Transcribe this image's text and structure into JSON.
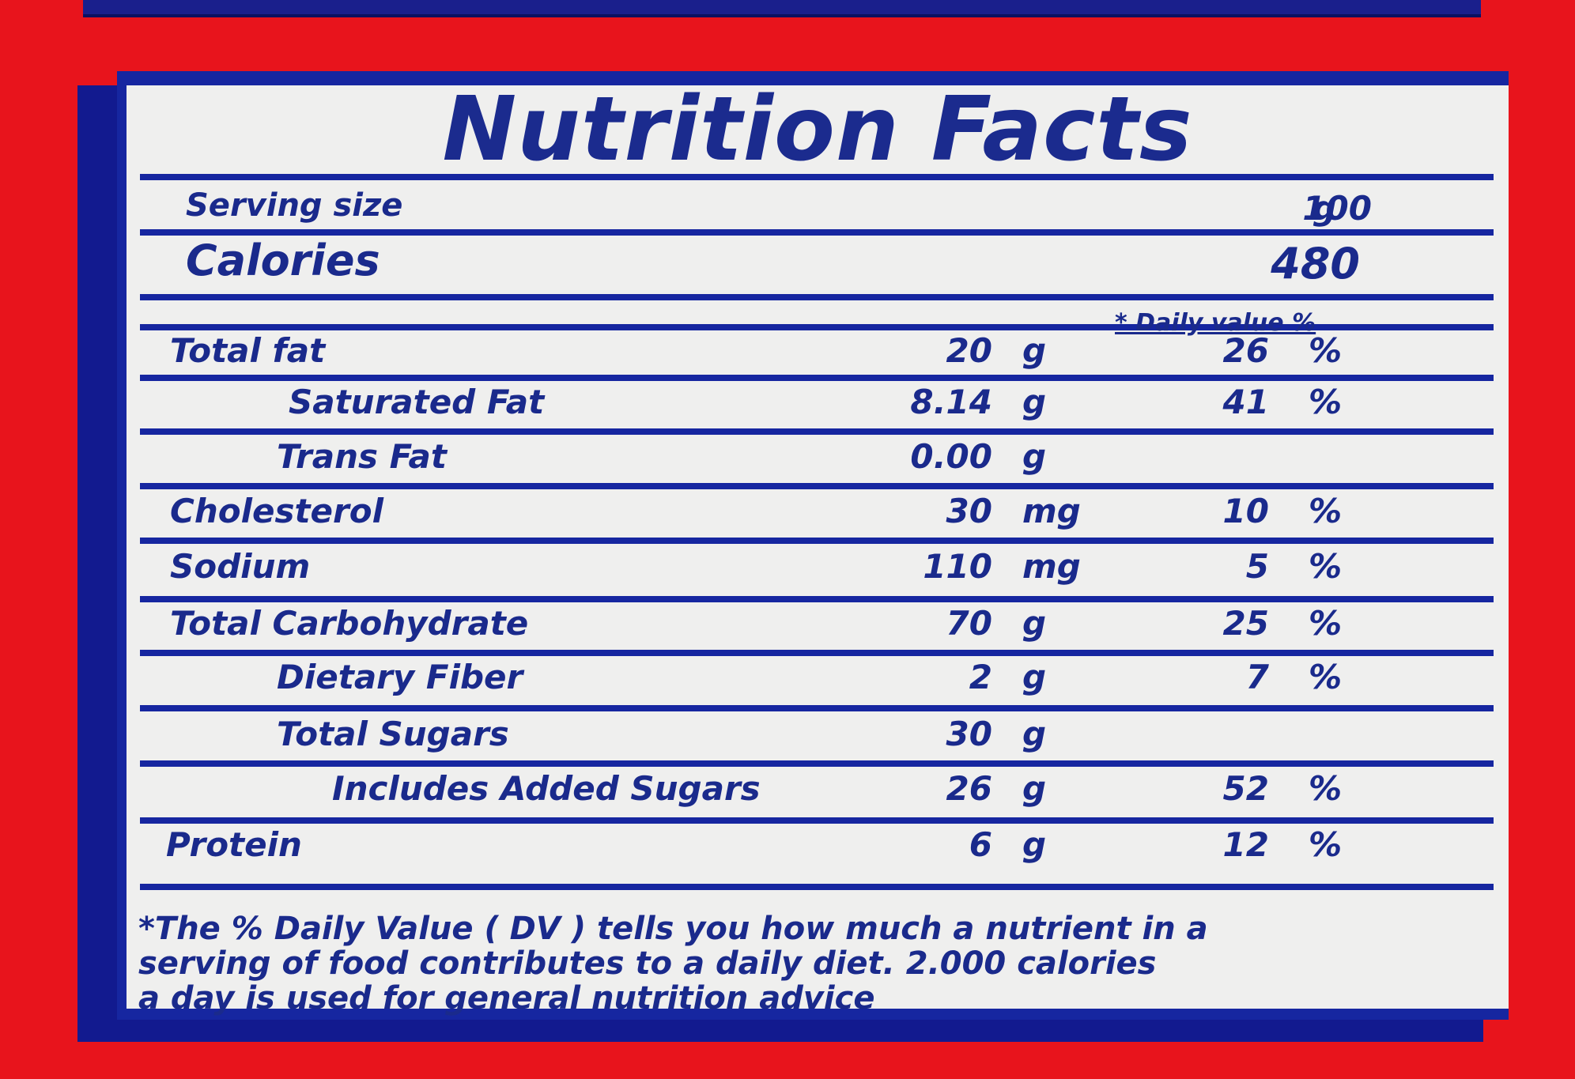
{
  "title": "Nutrition Facts",
  "serving": {
    "label": "Serving size",
    "value": "100",
    "unit": "g"
  },
  "calories": {
    "label": "Calories",
    "value": "480"
  },
  "dv_header": "* Daily value %",
  "nutrients": [
    {
      "name": "Total fat",
      "amount": "20",
      "unit": "g",
      "dv": "26",
      "pct": "%"
    },
    {
      "name": "Saturated Fat",
      "amount": "8.14",
      "unit": "g",
      "dv": "41",
      "pct": "%"
    },
    {
      "name": "Trans Fat",
      "amount": "0.00",
      "unit": "g",
      "dv": "",
      "pct": ""
    },
    {
      "name": "Cholesterol",
      "amount": "30",
      "unit": "mg",
      "dv": "10",
      "pct": "%"
    },
    {
      "name": "Sodium",
      "amount": "110",
      "unit": "mg",
      "dv": "5",
      "pct": "%"
    },
    {
      "name": "Total Carbohydrate",
      "amount": "70",
      "unit": "g",
      "dv": "25",
      "pct": "%"
    },
    {
      "name": "Dietary Fiber",
      "amount": "2",
      "unit": "g",
      "dv": "7",
      "pct": "%"
    },
    {
      "name": "Total Sugars",
      "amount": "30",
      "unit": "g",
      "dv": "",
      "pct": ""
    },
    {
      "name": "Includes Added Sugars",
      "amount": "26",
      "unit": "g",
      "dv": "52",
      "pct": "%"
    },
    {
      "name": "Protein",
      "amount": "6",
      "unit": "g",
      "dv": "12",
      "pct": "%"
    }
  ],
  "footnote": [
    "*The % Daily Value ( DV ) tells you how much a nutrient in a",
    "serving of food contributes to a daily diet. 2.000 calories",
    "a day is used for general nutrition advice"
  ]
}
